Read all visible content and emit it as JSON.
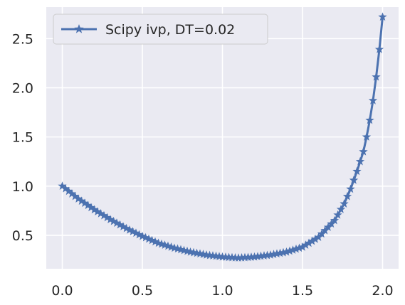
{
  "chart_data": {
    "type": "line",
    "title": "",
    "xlabel": "",
    "ylabel": "",
    "xlim": [
      -0.1,
      2.1
    ],
    "ylim": [
      0.16,
      2.82
    ],
    "xticks": [
      0.0,
      0.5,
      1.0,
      1.5,
      2.0
    ],
    "xtick_labels": [
      "0.0",
      "0.5",
      "1.0",
      "1.5",
      "2.0"
    ],
    "yticks": [
      0.5,
      1.0,
      1.5,
      2.0,
      2.5
    ],
    "ytick_labels": [
      "0.5",
      "1.0",
      "1.5",
      "2.0",
      "2.5"
    ],
    "grid": true,
    "legend_position": "upper-left",
    "series": [
      {
        "name": "Scipy ivp, DT=0.02",
        "color": "#4c72b0",
        "marker": "star",
        "dt": 0.02,
        "x_start": 0.0,
        "x_end": 2.0,
        "knots_x": [
          0.0,
          0.1,
          0.2,
          0.3,
          0.4,
          0.5,
          0.6,
          0.7,
          0.8,
          0.9,
          1.0,
          1.1,
          1.2,
          1.3,
          1.4,
          1.5,
          1.6,
          1.7,
          1.76,
          1.8,
          1.84,
          1.88,
          1.9,
          1.92,
          1.94,
          1.96,
          1.98,
          2.0
        ],
        "knots_y": [
          1.0,
          0.87,
          0.76,
          0.66,
          0.57,
          0.49,
          0.42,
          0.37,
          0.33,
          0.3,
          0.28,
          0.27,
          0.28,
          0.3,
          0.33,
          0.38,
          0.48,
          0.65,
          0.82,
          0.97,
          1.15,
          1.35,
          1.5,
          1.67,
          1.87,
          2.11,
          2.39,
          2.72
        ]
      }
    ]
  }
}
